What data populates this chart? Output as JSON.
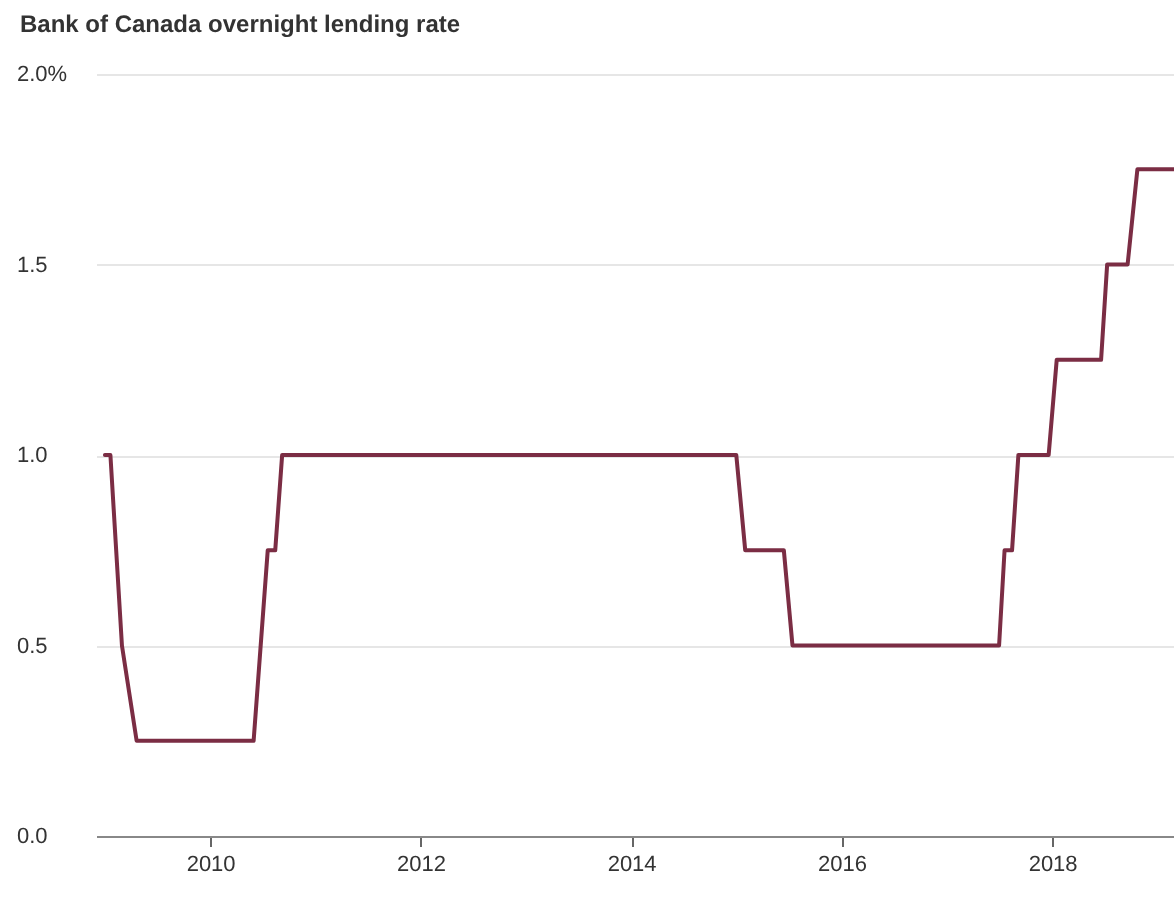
{
  "chart_data": {
    "type": "line",
    "title": "Bank of Canada overnight lending rate",
    "x": [
      "2009-01-01",
      "2009-01-20",
      "2009-03-01",
      "2009-04-21",
      "2010-06-01",
      "2010-07-20",
      "2010-08-15",
      "2010-09-08",
      "2015-01-01",
      "2015-02-01",
      "2015-06-15",
      "2015-07-15",
      "2017-07-01",
      "2017-07-20",
      "2017-08-15",
      "2017-09-06",
      "2017-12-20",
      "2018-01-17",
      "2018-06-20",
      "2018-07-11",
      "2018-09-20",
      "2018-10-24",
      "2019-02-28"
    ],
    "series": [
      {
        "color": "#7b2d44",
        "values": [
          1.0,
          1.0,
          0.5,
          0.25,
          0.25,
          0.75,
          0.75,
          1.0,
          1.0,
          0.75,
          0.75,
          0.5,
          0.5,
          0.75,
          0.75,
          1.0,
          1.0,
          1.25,
          1.25,
          1.5,
          1.5,
          1.75,
          1.75
        ]
      }
    ],
    "xlim": [
      "2008-12-01",
      "2019-02-28"
    ],
    "xticks": [
      {
        "value": "2010",
        "label": "2010"
      },
      {
        "value": "2012",
        "label": "2012"
      },
      {
        "value": "2014",
        "label": "2014"
      },
      {
        "value": "2016",
        "label": "2016"
      },
      {
        "value": "2018",
        "label": "2018"
      }
    ],
    "ylim": [
      0,
      2
    ],
    "yticks": [
      {
        "value": 0,
        "label": "0.0"
      },
      {
        "value": 0.5,
        "label": "0.5"
      },
      {
        "value": 1,
        "label": "1.0"
      },
      {
        "value": 1.5,
        "label": "1.5"
      },
      {
        "value": 2,
        "label": "2.0%"
      }
    ],
    "grid": "y",
    "line_style": "solid"
  }
}
